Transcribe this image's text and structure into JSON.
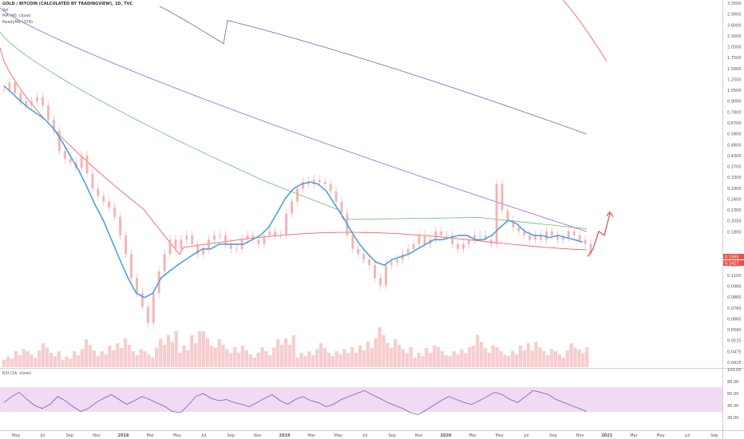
{
  "header": {
    "title": "GOLD / BITCOIN (CALCULATED BY TRADINGVIEW), 1D, TVC",
    "indicators": [
      "Vol",
      "MA (40, close)",
      "ReadyMe (378)"
    ]
  },
  "price_badges": [
    "0.1560",
    "0.1427"
  ],
  "colors": {
    "up": "#f4a6a6",
    "down": "#f4a6a6",
    "ma40": "#4aa3d8",
    "ma_red": "#ef5350",
    "ma_green": "#66bb6a",
    "ma_purple": "#9c5fd6",
    "ma_violet": "#7b5fb8",
    "rsi": "#7e57c2",
    "rsi_band": "#e1bee7",
    "arrow": "#e53935",
    "badge": "#e5534b"
  },
  "chart_data": [
    {
      "type": "line",
      "title": "GOLD / BITCOIN (CALCULATED BY TRADINGVIEW), 1D, TVC",
      "y_scale": "log",
      "ylim": [
        0.042,
        3.3
      ],
      "y_ticks": [
        "3.3500",
        "2.9000",
        "2.6000",
        "2.3000",
        "2.0500",
        "1.7500",
        "1.5000",
        "1.2500",
        "1.0500",
        "0.9000",
        "0.7800",
        "0.6700",
        "0.5800",
        "0.4800",
        "0.4300",
        "0.3700",
        "0.3300",
        "0.2900",
        "0.2600",
        "0.2300",
        "0.2050",
        "0.1800",
        "0.1560",
        "0.1427",
        "0.1250",
        "0.1100",
        "0.0980",
        "0.0860",
        "0.0760",
        "0.0660",
        "0.0590",
        "0.0525",
        "0.0475",
        "0.0425"
      ],
      "x_ticks": [
        "May",
        "Jul",
        "Sep",
        "Nov",
        "2018",
        "Mar",
        "May",
        "Jul",
        "Sep",
        "Nov",
        "2019",
        "Mar",
        "May",
        "Jul",
        "Sep",
        "Nov",
        "2020",
        "Mar",
        "May",
        "Jul",
        "Sep",
        "Nov",
        "2021",
        "Mar",
        "May",
        "Jul",
        "Sep"
      ],
      "price": [
        1.15,
        1.25,
        1.1,
        1.0,
        0.95,
        1.0,
        1.05,
        0.95,
        0.8,
        0.7,
        0.55,
        0.5,
        0.48,
        0.45,
        0.52,
        0.42,
        0.35,
        0.32,
        0.3,
        0.28,
        0.25,
        0.2,
        0.16,
        0.12,
        0.1,
        0.085,
        0.07,
        0.1,
        0.13,
        0.16,
        0.19,
        0.17,
        0.19,
        0.2,
        0.18,
        0.16,
        0.17,
        0.19,
        0.2,
        0.2,
        0.18,
        0.17,
        0.17,
        0.19,
        0.2,
        0.19,
        0.18,
        0.2,
        0.21,
        0.2,
        0.2,
        0.26,
        0.3,
        0.35,
        0.38,
        0.37,
        0.39,
        0.38,
        0.37,
        0.34,
        0.3,
        0.26,
        0.2,
        0.17,
        0.16,
        0.15,
        0.14,
        0.12,
        0.11,
        0.14,
        0.145,
        0.15,
        0.16,
        0.17,
        0.18,
        0.2,
        0.18,
        0.19,
        0.21,
        0.2,
        0.2,
        0.18,
        0.17,
        0.18,
        0.19,
        0.2,
        0.2,
        0.19,
        0.18,
        0.37,
        0.27,
        0.24,
        0.22,
        0.21,
        0.2,
        0.19,
        0.2,
        0.19,
        0.21,
        0.2,
        0.19,
        0.195,
        0.21,
        0.2,
        0.19,
        0.18,
        0.16
      ],
      "series": [
        {
          "name": "MA (40, close)",
          "values": [
            1.2,
            1.1,
            1.0,
            0.92,
            0.86,
            0.8,
            0.72,
            0.62,
            0.52,
            0.44,
            0.36,
            0.29,
            0.24,
            0.19,
            0.15,
            0.12,
            0.1,
            0.095,
            0.1,
            0.12,
            0.13,
            0.14,
            0.15,
            0.16,
            0.17,
            0.17,
            0.18,
            0.18,
            0.18,
            0.18,
            0.19,
            0.2,
            0.22,
            0.26,
            0.31,
            0.35,
            0.37,
            0.38,
            0.37,
            0.34,
            0.29,
            0.25,
            0.21,
            0.18,
            0.16,
            0.145,
            0.14,
            0.15,
            0.155,
            0.16,
            0.17,
            0.18,
            0.19,
            0.19,
            0.195,
            0.2,
            0.2,
            0.19,
            0.19,
            0.2,
            0.22,
            0.24,
            0.23,
            0.21,
            0.2,
            0.2,
            0.195,
            0.2,
            0.195,
            0.19,
            0.185
          ]
        }
      ],
      "projection_arrow": [
        0.155,
        0.17,
        0.21,
        0.2,
        0.26
      ]
    },
    {
      "type": "bar",
      "title": "Vol",
      "values": [
        0.3,
        0.5,
        0.4,
        0.6,
        0.4,
        0.3,
        0.5,
        0.7,
        0.4,
        0.6,
        0.8,
        0.5,
        0.4,
        0.7,
        0.9,
        0.6,
        1.0,
        0.9,
        0.7,
        0.5,
        0.6,
        0.4,
        0.5,
        0.7,
        0.8,
        0.4,
        0.5,
        0.6,
        0.4,
        0.5,
        0.6,
        0.8,
        1.0,
        0.7,
        0.5,
        0.4,
        0.6,
        0.5,
        0.4,
        0.5,
        0.9,
        0.6,
        0.5,
        0.4,
        0.6,
        0.7,
        0.5,
        0.4,
        0.6,
        0.5
      ]
    },
    {
      "type": "line",
      "title": "RSI (14, close)",
      "ylim": [
        0,
        100
      ],
      "y_ticks": [
        "100.00",
        "80.00",
        "60.00",
        "40.00",
        "20.00"
      ],
      "band": [
        30,
        70
      ],
      "values": [
        45,
        55,
        62,
        50,
        40,
        35,
        42,
        55,
        48,
        38,
        30,
        35,
        45,
        52,
        58,
        50,
        42,
        48,
        55,
        50,
        44,
        38,
        30,
        28,
        40,
        55,
        60,
        52,
        48,
        50,
        45,
        42,
        38,
        45,
        52,
        58,
        48,
        42,
        50,
        55,
        48,
        45,
        38,
        42,
        50,
        55,
        60,
        65,
        58,
        52,
        45,
        40,
        35,
        28,
        25,
        32,
        40,
        48,
        55,
        50,
        45,
        42,
        48,
        55,
        62,
        58,
        50,
        45,
        55,
        65,
        62,
        58,
        50,
        45,
        40,
        35,
        30
      ]
    }
  ]
}
